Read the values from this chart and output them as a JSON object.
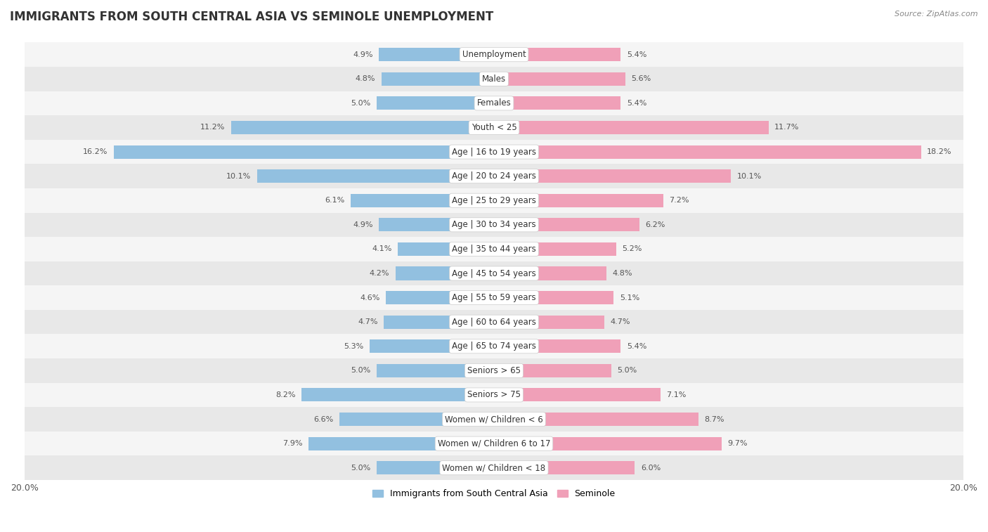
{
  "title": "IMMIGRANTS FROM SOUTH CENTRAL ASIA VS SEMINOLE UNEMPLOYMENT",
  "source": "Source: ZipAtlas.com",
  "categories": [
    "Unemployment",
    "Males",
    "Females",
    "Youth < 25",
    "Age | 16 to 19 years",
    "Age | 20 to 24 years",
    "Age | 25 to 29 years",
    "Age | 30 to 34 years",
    "Age | 35 to 44 years",
    "Age | 45 to 54 years",
    "Age | 55 to 59 years",
    "Age | 60 to 64 years",
    "Age | 65 to 74 years",
    "Seniors > 65",
    "Seniors > 75",
    "Women w/ Children < 6",
    "Women w/ Children 6 to 17",
    "Women w/ Children < 18"
  ],
  "left_values": [
    4.9,
    4.8,
    5.0,
    11.2,
    16.2,
    10.1,
    6.1,
    4.9,
    4.1,
    4.2,
    4.6,
    4.7,
    5.3,
    5.0,
    8.2,
    6.6,
    7.9,
    5.0
  ],
  "right_values": [
    5.4,
    5.6,
    5.4,
    11.7,
    18.2,
    10.1,
    7.2,
    6.2,
    5.2,
    4.8,
    5.1,
    4.7,
    5.4,
    5.0,
    7.1,
    8.7,
    9.7,
    6.0
  ],
  "left_color": "#92c0e0",
  "right_color": "#f0a0b8",
  "left_label": "Immigrants from South Central Asia",
  "right_label": "Seminole",
  "xlim": 20.0,
  "background_color": "#ffffff",
  "row_bg_even": "#f5f5f5",
  "row_bg_odd": "#e8e8e8",
  "title_fontsize": 12,
  "label_fontsize": 8.5,
  "value_fontsize": 8
}
